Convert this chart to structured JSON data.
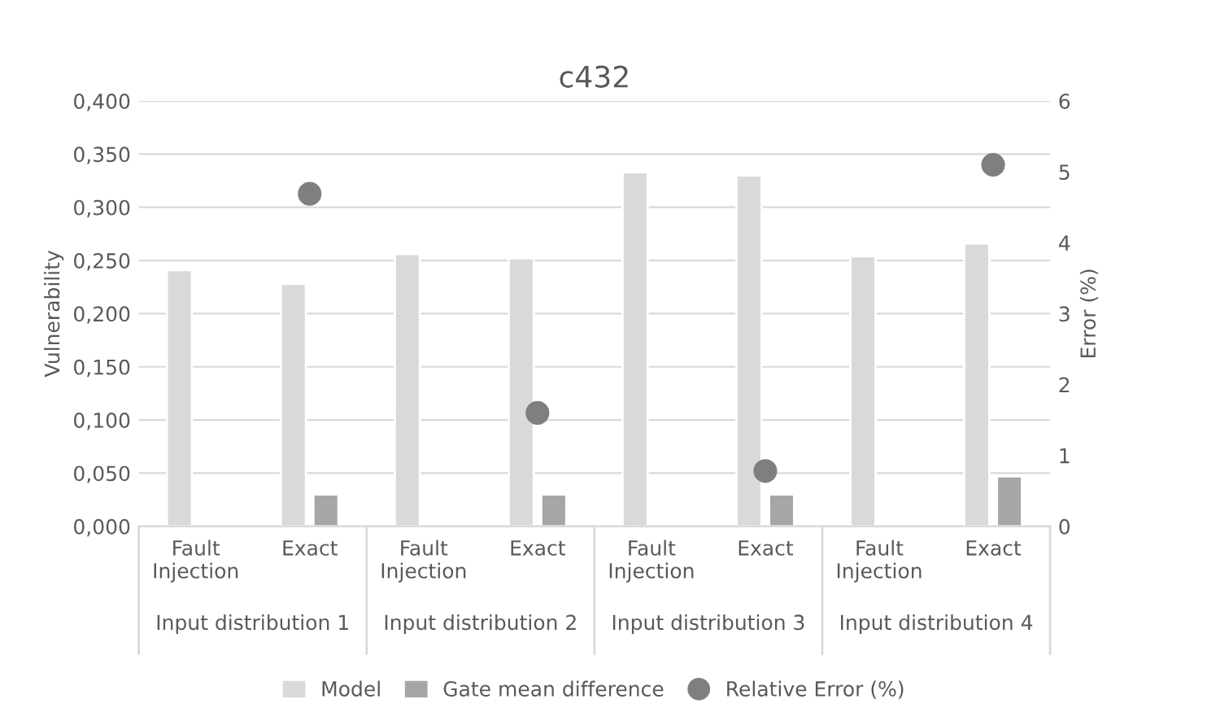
{
  "chart_data": {
    "type": "bar",
    "title": "c432",
    "ylabel": "Vulnerability",
    "y2label": "Error (%)",
    "categories": [
      "Fault Injection",
      "Exact",
      "Fault Injection",
      "Exact",
      "Fault Injection",
      "Exact",
      "Fault Injection",
      "Exact"
    ],
    "annotations": [
      "Input distribution 1",
      "Input distribution 2",
      "Input distribution 3",
      "Input distribution 4"
    ],
    "series": [
      {
        "name": "Model",
        "color": "#d9d9d9",
        "values": [
          0.241,
          0.228,
          0.256,
          0.252,
          0.333,
          0.33,
          0.254,
          0.266
        ]
      },
      {
        "name": "Gate mean difference",
        "color": "#a6a6a6",
        "values": [
          null,
          0.03,
          null,
          0.03,
          null,
          0.03,
          null,
          0.047
        ]
      },
      {
        "name": "Relative Error (%)",
        "type": "scatter",
        "axis": "y2",
        "color": "#7f7f7f",
        "marker": "circle",
        "values": [
          null,
          4.69,
          null,
          1.6,
          null,
          0.78,
          null,
          5.1
        ]
      }
    ],
    "ylim": [
      0,
      0.4
    ],
    "yticks": [
      {
        "value": 0,
        "label": "0,000"
      },
      {
        "value": 0.05,
        "label": "0,050"
      },
      {
        "value": 0.1,
        "label": "0,100"
      },
      {
        "value": 0.15,
        "label": "0,150"
      },
      {
        "value": 0.2,
        "label": "0,200"
      },
      {
        "value": 0.25,
        "label": "0,250"
      },
      {
        "value": 0.3,
        "label": "0,300"
      },
      {
        "value": 0.35,
        "label": "0,350"
      },
      {
        "value": 0.4,
        "label": "0,400"
      }
    ],
    "y2lim": [
      0,
      6
    ],
    "y2ticks": [
      0,
      1,
      2,
      3,
      4,
      5,
      6
    ],
    "grid": "y",
    "legend": "bottom"
  }
}
